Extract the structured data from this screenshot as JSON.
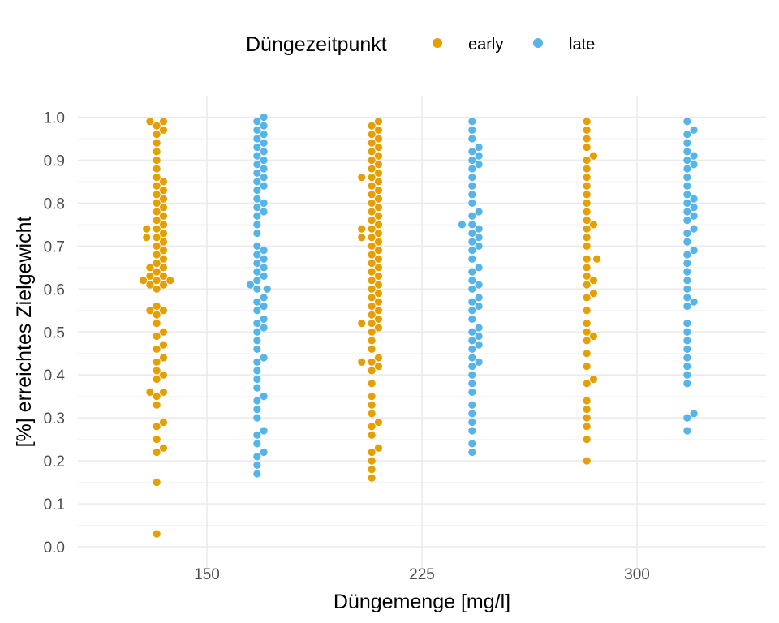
{
  "chart_data": {
    "type": "scatter",
    "subtype": "beeswarm",
    "xlabel": "Düngemenge [mg/l]",
    "ylabel": "[%] erreichtes Zielgewicht",
    "x_ticks": [
      "150",
      "225",
      "300"
    ],
    "y_ticks": [
      "0.0",
      "0.1",
      "0.2",
      "0.3",
      "0.4",
      "0.5",
      "0.6",
      "0.7",
      "0.8",
      "0.9",
      "1.0"
    ],
    "xlim": [
      105,
      345
    ],
    "ylim": [
      0,
      1
    ],
    "grid": true,
    "legend": {
      "title": "Düngezeitpunkt",
      "position": "top"
    },
    "series": [
      {
        "name": "early",
        "color": "#E69F00",
        "groups": [
          {
            "x": 150,
            "values": [
              0.03,
              0.15,
              0.22,
              0.23,
              0.25,
              0.28,
              0.29,
              0.33,
              0.35,
              0.36,
              0.36,
              0.39,
              0.4,
              0.41,
              0.43,
              0.44,
              0.46,
              0.47,
              0.49,
              0.5,
              0.52,
              0.54,
              0.55,
              0.55,
              0.56,
              0.6,
              0.61,
              0.61,
              0.62,
              0.62,
              0.62,
              0.63,
              0.63,
              0.64,
              0.65,
              0.65,
              0.66,
              0.67,
              0.68,
              0.69,
              0.7,
              0.71,
              0.72,
              0.72,
              0.73,
              0.74,
              0.74,
              0.75,
              0.76,
              0.77,
              0.78,
              0.79,
              0.8,
              0.81,
              0.82,
              0.83,
              0.84,
              0.85,
              0.86,
              0.88,
              0.9,
              0.92,
              0.94,
              0.96,
              0.97,
              0.98,
              0.99,
              0.99
            ]
          },
          {
            "x": 225,
            "values": [
              0.16,
              0.18,
              0.2,
              0.22,
              0.23,
              0.26,
              0.28,
              0.29,
              0.31,
              0.33,
              0.35,
              0.38,
              0.41,
              0.42,
              0.43,
              0.43,
              0.44,
              0.46,
              0.48,
              0.5,
              0.51,
              0.52,
              0.52,
              0.53,
              0.54,
              0.55,
              0.56,
              0.57,
              0.58,
              0.59,
              0.6,
              0.61,
              0.62,
              0.63,
              0.64,
              0.65,
              0.66,
              0.67,
              0.68,
              0.69,
              0.7,
              0.71,
              0.72,
              0.72,
              0.73,
              0.74,
              0.74,
              0.75,
              0.76,
              0.77,
              0.78,
              0.79,
              0.8,
              0.81,
              0.82,
              0.83,
              0.84,
              0.85,
              0.86,
              0.86,
              0.87,
              0.88,
              0.89,
              0.9,
              0.91,
              0.92,
              0.93,
              0.94,
              0.95,
              0.96,
              0.97,
              0.98,
              0.99
            ]
          },
          {
            "x": 300,
            "values": [
              0.2,
              0.25,
              0.28,
              0.3,
              0.32,
              0.34,
              0.38,
              0.39,
              0.42,
              0.45,
              0.48,
              0.49,
              0.5,
              0.52,
              0.55,
              0.58,
              0.59,
              0.61,
              0.62,
              0.63,
              0.65,
              0.67,
              0.67,
              0.7,
              0.72,
              0.74,
              0.75,
              0.76,
              0.78,
              0.8,
              0.82,
              0.84,
              0.86,
              0.88,
              0.9,
              0.91,
              0.93,
              0.95,
              0.97,
              0.99
            ]
          }
        ]
      },
      {
        "name": "late",
        "color": "#56B4E9",
        "groups": [
          {
            "x": 150,
            "values": [
              0.17,
              0.19,
              0.21,
              0.22,
              0.24,
              0.26,
              0.27,
              0.3,
              0.32,
              0.34,
              0.35,
              0.37,
              0.39,
              0.41,
              0.43,
              0.44,
              0.46,
              0.48,
              0.5,
              0.51,
              0.52,
              0.53,
              0.55,
              0.56,
              0.57,
              0.58,
              0.6,
              0.6,
              0.61,
              0.62,
              0.63,
              0.64,
              0.65,
              0.66,
              0.67,
              0.68,
              0.69,
              0.7,
              0.73,
              0.75,
              0.77,
              0.78,
              0.79,
              0.8,
              0.81,
              0.83,
              0.84,
              0.85,
              0.86,
              0.87,
              0.88,
              0.89,
              0.9,
              0.91,
              0.92,
              0.93,
              0.94,
              0.95,
              0.96,
              0.97,
              0.98,
              0.99,
              1.0
            ]
          },
          {
            "x": 225,
            "values": [
              0.22,
              0.24,
              0.27,
              0.29,
              0.31,
              0.33,
              0.36,
              0.38,
              0.4,
              0.42,
              0.43,
              0.44,
              0.46,
              0.47,
              0.48,
              0.49,
              0.5,
              0.51,
              0.53,
              0.55,
              0.56,
              0.57,
              0.58,
              0.6,
              0.61,
              0.62,
              0.64,
              0.65,
              0.67,
              0.69,
              0.7,
              0.71,
              0.72,
              0.73,
              0.74,
              0.75,
              0.75,
              0.77,
              0.78,
              0.8,
              0.82,
              0.84,
              0.86,
              0.88,
              0.89,
              0.9,
              0.91,
              0.92,
              0.93,
              0.95,
              0.97,
              0.99
            ]
          },
          {
            "x": 300,
            "values": [
              0.27,
              0.3,
              0.31,
              0.38,
              0.4,
              0.42,
              0.44,
              0.46,
              0.48,
              0.5,
              0.52,
              0.56,
              0.57,
              0.58,
              0.6,
              0.62,
              0.64,
              0.66,
              0.68,
              0.69,
              0.71,
              0.73,
              0.74,
              0.76,
              0.77,
              0.78,
              0.79,
              0.8,
              0.81,
              0.82,
              0.84,
              0.86,
              0.88,
              0.89,
              0.9,
              0.91,
              0.92,
              0.94,
              0.96,
              0.97,
              0.99
            ]
          }
        ]
      }
    ]
  }
}
